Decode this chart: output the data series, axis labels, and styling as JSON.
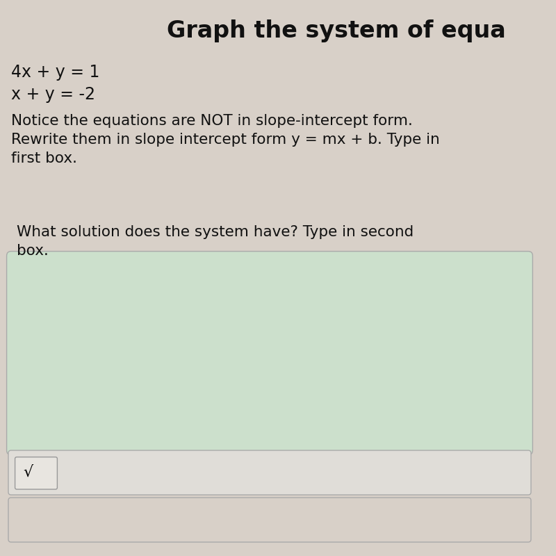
{
  "background_color": "#d8d0c8",
  "title_text": "Graph the system of equa",
  "title_fontsize": 24,
  "eq1": "4x + y = 1",
  "eq2": "x + y = -2",
  "eq_fontsize": 17,
  "notice_text": "Notice the equations are NOT in slope-intercept form.\nRewrite them in slope intercept form y = mx + b. Type in\nfirst box.",
  "notice_fontsize": 15.5,
  "solution_text": "What solution does the system have? Type in second\nbox.",
  "solution_fontsize": 15.5,
  "box_color": "#cce0cc",
  "box_border": "#aaaaaa",
  "toolbar_color": "#e0ddd8",
  "sqrt_symbol": "√ ",
  "bottom_color": "#d8d0c8"
}
